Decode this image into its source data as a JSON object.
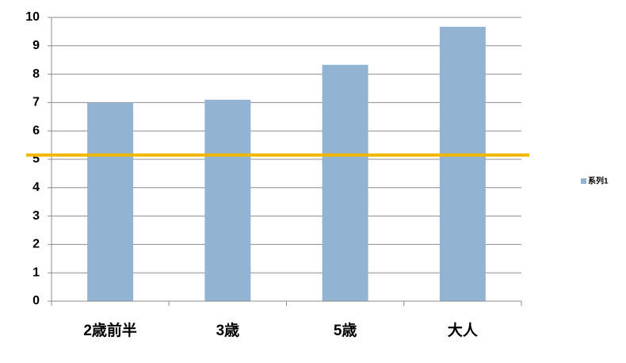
{
  "chart_data": {
    "type": "bar",
    "categories": [
      "2歳前半",
      "3歳",
      "5歳",
      "大人"
    ],
    "series": [
      {
        "name": "系列1",
        "color": "#93b3d3",
        "values": [
          7.0,
          7.1,
          8.33,
          9.67
        ]
      }
    ],
    "ylim": [
      0,
      10
    ],
    "yticks": [
      0,
      1,
      2,
      3,
      4,
      5,
      6,
      7,
      8,
      9,
      10
    ],
    "grid": true,
    "legend": "right",
    "reference_line": {
      "value": 5.15,
      "color": "#f2b705"
    }
  }
}
